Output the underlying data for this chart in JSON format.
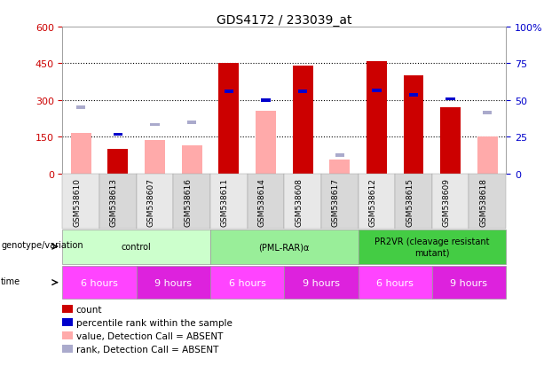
{
  "title": "GDS4172 / 233039_at",
  "samples": [
    "GSM538610",
    "GSM538613",
    "GSM538607",
    "GSM538616",
    "GSM538611",
    "GSM538614",
    "GSM538608",
    "GSM538617",
    "GSM538612",
    "GSM538615",
    "GSM538609",
    "GSM538618"
  ],
  "count_values": [
    null,
    100,
    null,
    null,
    450,
    null,
    440,
    null,
    460,
    400,
    270,
    null
  ],
  "count_absent": [
    165,
    null,
    135,
    115,
    null,
    255,
    null,
    55,
    null,
    null,
    null,
    150
  ],
  "rank_values_scaled": [
    null,
    160,
    null,
    null,
    335,
    300,
    335,
    null,
    340,
    320,
    305,
    null
  ],
  "rank_absent_scaled": [
    270,
    null,
    200,
    210,
    null,
    null,
    null,
    75,
    null,
    null,
    null,
    250
  ],
  "ylim_left": [
    0,
    600
  ],
  "yticks_left": [
    0,
    150,
    300,
    450,
    600
  ],
  "yticklabels_left": [
    "0",
    "150",
    "300",
    "450",
    "600"
  ],
  "yticks_right": [
    0,
    25,
    50,
    75,
    100
  ],
  "yticklabels_right": [
    "0",
    "25",
    "50",
    "75",
    "100%"
  ],
  "left_tick_color": "#cc0000",
  "right_tick_color": "#0000cc",
  "count_color": "#cc0000",
  "count_absent_color": "#ffaaaa",
  "rank_color": "#0000cc",
  "rank_absent_color": "#aaaacc",
  "groups": [
    {
      "label": "control",
      "start": 0,
      "end": 3,
      "color": "#ccffcc"
    },
    {
      "label": "(PML-RAR)α",
      "start": 4,
      "end": 7,
      "color": "#99ee99"
    },
    {
      "label": "PR2VR (cleavage resistant\nmutant)",
      "start": 8,
      "end": 11,
      "color": "#44cc44"
    }
  ],
  "time_groups": [
    {
      "label": "6 hours",
      "start": 0,
      "end": 1,
      "color": "#ff44ff"
    },
    {
      "label": "9 hours",
      "start": 2,
      "end": 3,
      "color": "#dd22dd"
    },
    {
      "label": "6 hours",
      "start": 4,
      "end": 5,
      "color": "#ff44ff"
    },
    {
      "label": "9 hours",
      "start": 6,
      "end": 7,
      "color": "#dd22dd"
    },
    {
      "label": "6 hours",
      "start": 8,
      "end": 9,
      "color": "#ff44ff"
    },
    {
      "label": "9 hours",
      "start": 10,
      "end": 11,
      "color": "#dd22dd"
    }
  ],
  "legend_items": [
    {
      "label": "count",
      "color": "#cc0000"
    },
    {
      "label": "percentile rank within the sample",
      "color": "#0000cc"
    },
    {
      "label": "value, Detection Call = ABSENT",
      "color": "#ffaaaa"
    },
    {
      "label": "rank, Detection Call = ABSENT",
      "color": "#aaaacc"
    }
  ],
  "genotype_label": "genotype/variation",
  "time_label": "time",
  "bg_color": "#ffffff"
}
